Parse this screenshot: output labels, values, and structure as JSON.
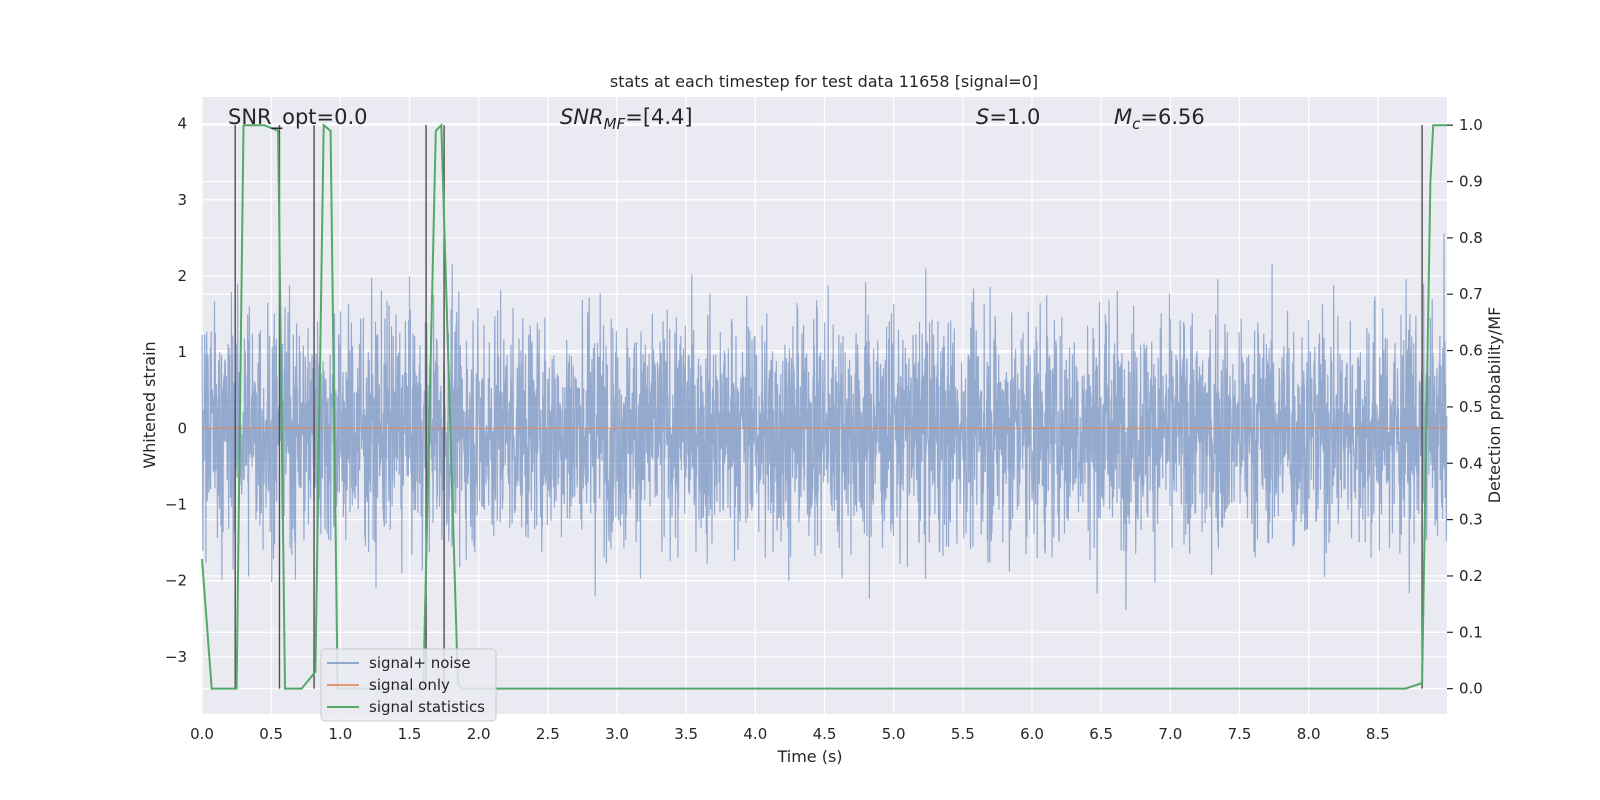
{
  "chart_data": {
    "type": "line",
    "title": "stats at each timestep for test data 11658 [signal=0]",
    "xlabel": "Time (s)",
    "ylabel": "Whitened strain",
    "y2label": "Detection probability/MF",
    "xlim": [
      0.0,
      9.0
    ],
    "ylim": [
      -3.75,
      4.35
    ],
    "y2lim": [
      -0.045,
      1.05
    ],
    "xticks": [
      "0.0",
      "0.5",
      "1.0",
      "1.5",
      "2.0",
      "2.5",
      "3.0",
      "3.5",
      "4.0",
      "4.5",
      "5.0",
      "5.5",
      "6.0",
      "6.5",
      "7.0",
      "7.5",
      "8.0",
      "8.5"
    ],
    "yticks": [
      "−3",
      "−2",
      "−1",
      "0",
      "1",
      "2",
      "3",
      "4"
    ],
    "y2ticks": [
      "0.0",
      "0.1",
      "0.2",
      "0.3",
      "0.4",
      "0.5",
      "0.6",
      "0.7",
      "0.8",
      "0.9",
      "1.0"
    ],
    "grid": true,
    "legend_position": "lower-left",
    "annotations": [
      {
        "id": "snr_opt",
        "text": "SNR_opt=0.0"
      },
      {
        "id": "snr_mf",
        "base": "SNR",
        "sub": "MF",
        "rest": "=[4.4]"
      },
      {
        "id": "s",
        "base": "S",
        "rest": "=1.0"
      },
      {
        "id": "mc",
        "base": "M",
        "sub": "c",
        "rest": "=6.56"
      }
    ],
    "series": [
      {
        "name": "signal+ noise",
        "color": "#4c72b0",
        "kind": "noise",
        "amplitude_typical": [
          -1.9,
          2.0
        ],
        "amplitude_extremes": [
          -3.4,
          4.0
        ]
      },
      {
        "name": "signal only",
        "color": "#dd8452",
        "x": [
          0.0,
          9.0
        ],
        "y": [
          0.0,
          0.0
        ]
      },
      {
        "name": "signal statistics",
        "color": "#55a868",
        "axis": "right",
        "x": [
          0.0,
          0.07,
          0.25,
          0.3,
          0.45,
          0.55,
          0.6,
          0.72,
          0.82,
          0.88,
          0.93,
          0.98,
          1.02,
          1.35,
          1.6,
          1.69,
          1.73,
          1.85,
          1.88,
          2.5,
          4.0,
          6.0,
          8.0,
          8.7,
          8.82,
          8.88,
          8.9,
          9.0
        ],
        "y": [
          0.23,
          0.0,
          0.0,
          1.0,
          1.0,
          0.99,
          0.0,
          0.0,
          0.03,
          1.0,
          0.99,
          0.0,
          0.0,
          0.0,
          0.0,
          0.99,
          1.0,
          0.01,
          0.0,
          0.0,
          0.0,
          0.0,
          0.0,
          0.0,
          0.01,
          0.9,
          1.0,
          1.0
        ]
      }
    ],
    "vertical_lines_x": [
      0.24,
      0.56,
      0.81,
      1.62,
      1.75,
      8.82
    ]
  }
}
